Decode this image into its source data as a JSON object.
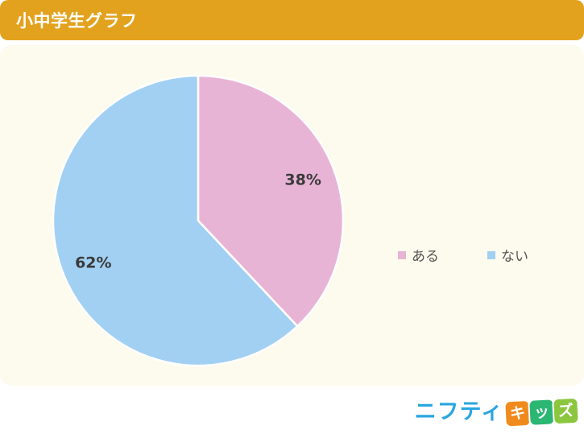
{
  "header": {
    "title": "小中学生グラフ"
  },
  "chart_data": {
    "type": "pie",
    "title": "",
    "categories": [
      "ある",
      "ない"
    ],
    "values": [
      38,
      62
    ],
    "unit": "%",
    "colors": [
      "#e8b4d6",
      "#a2d0f3"
    ],
    "legend_position": "right"
  },
  "brand": {
    "nifty": "ニフティ",
    "kids": [
      "キ",
      "ッ",
      "ズ"
    ],
    "kids_colors": [
      "#f08a1c",
      "#2bb673",
      "#8cc63f"
    ]
  }
}
